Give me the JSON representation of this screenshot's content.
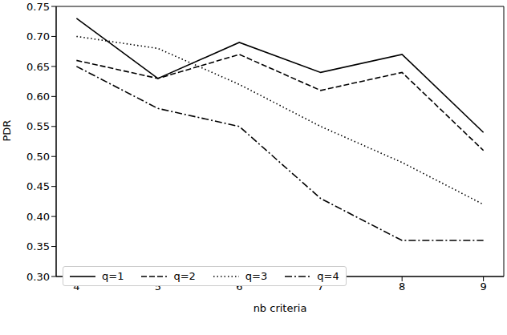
{
  "chart_data": {
    "type": "line",
    "x_label": "nb criteria",
    "y_label": "PDR",
    "x": [
      4,
      5,
      6,
      7,
      8,
      9
    ],
    "series": [
      {
        "name": "q=1",
        "color": "#000000",
        "line_style": "solid",
        "values": [
          0.73,
          0.63,
          0.69,
          0.64,
          0.67,
          0.54
        ]
      },
      {
        "name": "q=2",
        "color": "#000000",
        "line_style": "dashed",
        "values": [
          0.66,
          0.63,
          0.67,
          0.61,
          0.64,
          0.51
        ]
      },
      {
        "name": "q=3",
        "color": "#000000",
        "line_style": "dotted",
        "values": [
          0.7,
          0.68,
          0.62,
          0.55,
          0.49,
          0.42
        ]
      },
      {
        "name": "q=4",
        "color": "#000000",
        "line_style": "dashdot",
        "values": [
          0.65,
          0.58,
          0.55,
          0.43,
          0.36,
          0.36
        ]
      }
    ],
    "xlim": [
      3.75,
      9.25
    ],
    "xticks": [
      4,
      5,
      6,
      7,
      8,
      9
    ],
    "ylim": [
      0.3,
      0.75
    ],
    "yticks": [
      {
        "value": 0.3,
        "label": "0.30"
      },
      0.35,
      {
        "value": 0.4,
        "label": "0.40"
      },
      0.45,
      {
        "value": 0.5,
        "label": "0.50"
      },
      0.55,
      {
        "value": 0.6,
        "label": "0.60"
      },
      0.65,
      {
        "value": 0.7,
        "label": "0.70"
      },
      0.75
    ],
    "legend": "lower left",
    "grid": false
  }
}
